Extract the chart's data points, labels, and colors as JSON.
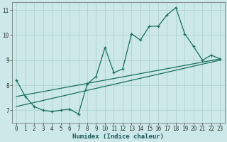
{
  "xlabel": "Humidex (Indice chaleur)",
  "xlim": [
    -0.5,
    23.5
  ],
  "ylim": [
    6.5,
    11.3
  ],
  "xticks": [
    0,
    1,
    2,
    3,
    4,
    5,
    6,
    7,
    8,
    9,
    10,
    11,
    12,
    13,
    14,
    15,
    16,
    17,
    18,
    19,
    20,
    21,
    22,
    23
  ],
  "yticks": [
    7,
    8,
    9,
    10,
    11
  ],
  "background_color": "#cce8e8",
  "grid_color": "#aacece",
  "line_color": "#1a6e60",
  "line1_x": [
    0,
    1,
    2,
    3,
    4,
    5,
    6,
    7,
    8,
    9,
    10,
    11,
    12,
    13,
    14,
    15,
    16,
    17,
    18,
    19,
    20,
    21,
    22,
    23
  ],
  "line1_y": [
    8.2,
    7.55,
    7.15,
    7.0,
    6.95,
    7.0,
    7.05,
    6.85,
    8.05,
    8.35,
    9.5,
    8.5,
    8.65,
    10.05,
    9.8,
    10.35,
    10.35,
    10.8,
    11.1,
    10.05,
    9.55,
    9.0,
    9.2,
    9.05
  ],
  "line2_x": [
    0,
    23
  ],
  "line2_y": [
    7.55,
    9.05
  ],
  "line3_x": [
    0,
    23
  ],
  "line3_y": [
    7.15,
    9.0
  ]
}
